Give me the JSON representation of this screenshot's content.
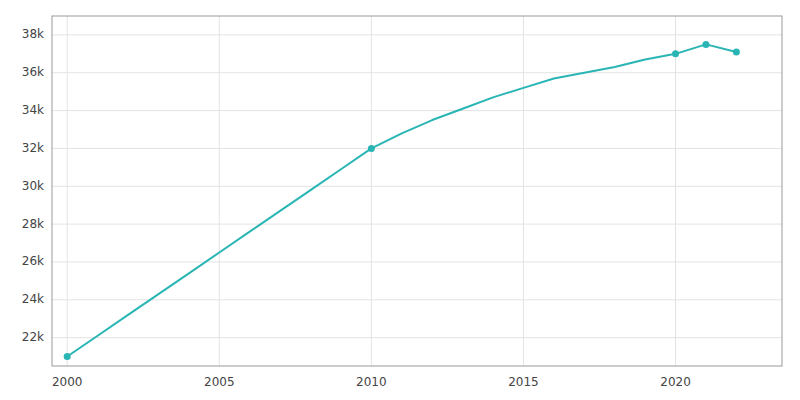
{
  "chart_data": {
    "type": "line",
    "x": [
      2000,
      2001,
      2002,
      2003,
      2004,
      2005,
      2006,
      2007,
      2008,
      2009,
      2010,
      2011,
      2012,
      2013,
      2014,
      2015,
      2016,
      2017,
      2018,
      2019,
      2020,
      2021,
      2022
    ],
    "series": [
      {
        "type": "line",
        "color": "#2ab5b5",
        "values": [
          21000,
          22100,
          23200,
          24300,
          25400,
          26500,
          27600,
          28700,
          29800,
          30900,
          32000,
          32800,
          33500,
          34100,
          34700,
          35200,
          35700,
          36000,
          36300,
          36700,
          37000,
          37500,
          37100
        ]
      },
      {
        "type": "scatter",
        "color": "#2ab5b5",
        "x": [
          2000,
          2010,
          2020,
          2021,
          2022
        ],
        "values": [
          21000,
          32000,
          37000,
          37500,
          37100
        ]
      }
    ],
    "xlim": [
      1999.5,
      2023.5
    ],
    "xticks": [
      2000,
      2005,
      2010,
      2015,
      2020
    ],
    "ylim": [
      20500,
      39000
    ],
    "yticks": [
      {
        "value": 22000,
        "label": "22k"
      },
      {
        "value": 24000,
        "label": "24k"
      },
      {
        "value": 26000,
        "label": "26k"
      },
      {
        "value": 28000,
        "label": "28k"
      },
      {
        "value": 30000,
        "label": "30k"
      },
      {
        "value": 32000,
        "label": "32k"
      },
      {
        "value": 34000,
        "label": "34k"
      },
      {
        "value": 36000,
        "label": "36k"
      },
      {
        "value": 38000,
        "label": "38k"
      }
    ],
    "grid": true
  }
}
